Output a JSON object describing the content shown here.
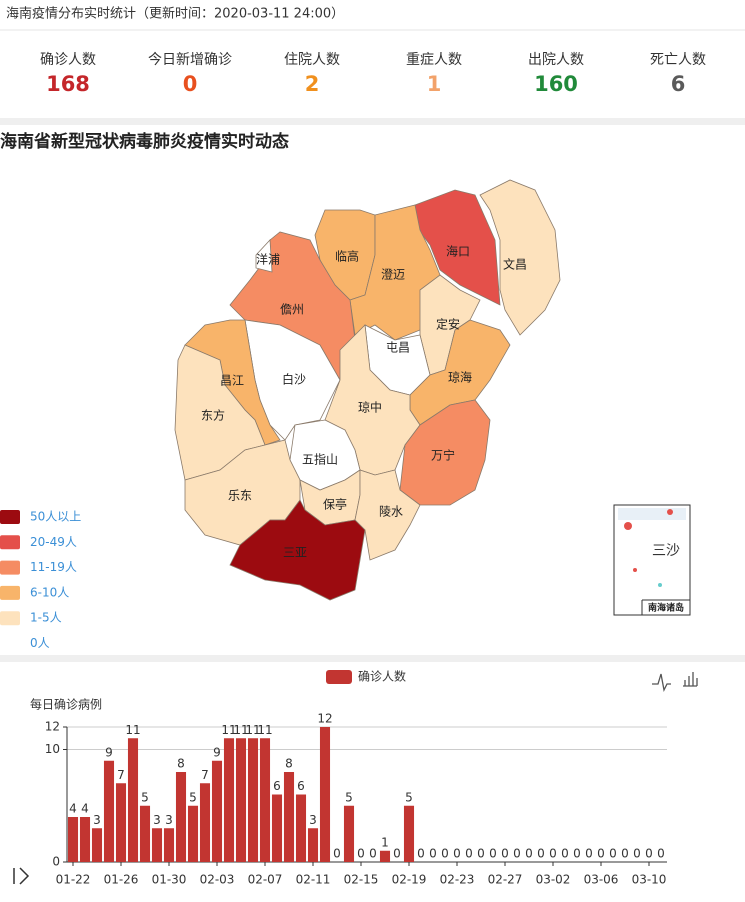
{
  "header": {
    "title": "海南疫情分布实时统计（更新时间：2020-03-11 24:00）"
  },
  "stats": [
    {
      "label": "确诊人数",
      "value": 168,
      "color": "#c4262a"
    },
    {
      "label": "今日新增确诊",
      "value": 0,
      "color": "#e8501f"
    },
    {
      "label": "住院人数",
      "value": 2,
      "color": "#f0901e"
    },
    {
      "label": "重症人数",
      "value": 1,
      "color": "#f2a26a"
    },
    {
      "label": "出院人数",
      "value": 160,
      "color": "#218a3a"
    },
    {
      "label": "死亡人数",
      "value": 6,
      "color": "#5a5a5a"
    }
  ],
  "map": {
    "title": "海南省新型冠状病毒肺炎疫情实时动态",
    "regions": [
      {
        "name": "海口",
        "color": "#e4504a"
      },
      {
        "name": "文昌",
        "color": "#fde2bd"
      },
      {
        "name": "临高",
        "color": "#f8b46a"
      },
      {
        "name": "澄迈",
        "color": "#f8b46a"
      },
      {
        "name": "儋州",
        "color": "#f58c63"
      },
      {
        "name": "洋浦",
        "color": "#ffffff"
      },
      {
        "name": "定安",
        "color": "#fde2bd"
      },
      {
        "name": "屯昌",
        "color": "#ffffff"
      },
      {
        "name": "琼海",
        "color": "#f8b46a"
      },
      {
        "name": "白沙",
        "color": "#ffffff"
      },
      {
        "name": "昌江",
        "color": "#f8b46a"
      },
      {
        "name": "东方",
        "color": "#fde2bd"
      },
      {
        "name": "琼中",
        "color": "#fde2bd"
      },
      {
        "name": "万宁",
        "color": "#f58c63"
      },
      {
        "name": "五指山",
        "color": "#ffffff"
      },
      {
        "name": "乐东",
        "color": "#fde2bd"
      },
      {
        "name": "保亭",
        "color": "#fde2bd"
      },
      {
        "name": "陵水",
        "color": "#fde2bd"
      },
      {
        "name": "三亚",
        "color": "#9c0b10"
      }
    ],
    "legend": [
      {
        "label": "50人以上",
        "color": "#9c0b10"
      },
      {
        "label": "20-49人",
        "color": "#e4504a"
      },
      {
        "label": "11-19人",
        "color": "#f58c63"
      },
      {
        "label": "6-10人",
        "color": "#f8b46a"
      },
      {
        "label": "1-5人",
        "color": "#fde2bd"
      },
      {
        "label": "0人",
        "color": "#ffffff"
      }
    ],
    "inset": {
      "label": "三沙",
      "caption": "南海诸岛"
    }
  },
  "chart_data": {
    "type": "bar",
    "y_label": "每日确诊病例",
    "categories": [
      "01-22",
      null,
      null,
      null,
      "01-26",
      null,
      null,
      null,
      "01-30",
      null,
      null,
      null,
      "02-03",
      null,
      null,
      null,
      "02-07",
      null,
      null,
      null,
      "02-11",
      null,
      null,
      null,
      "02-15",
      null,
      null,
      null,
      "02-19",
      null,
      null,
      null,
      "02-23",
      null,
      null,
      null,
      "02-27",
      null,
      null,
      null,
      "03-02",
      null,
      null,
      null,
      "03-06",
      null,
      null,
      null,
      "03-10",
      null
    ],
    "series": [
      {
        "name": "确诊人数",
        "color": "#c23531",
        "values": [
          4,
          4,
          3,
          9,
          7,
          11,
          5,
          3,
          3,
          8,
          5,
          7,
          9,
          11,
          11,
          11,
          11,
          6,
          8,
          6,
          3,
          12,
          0,
          5,
          0,
          0,
          1,
          0,
          5,
          0,
          0,
          0,
          0,
          0,
          0,
          0,
          0,
          0,
          0,
          0,
          0,
          0,
          0,
          0,
          0,
          0,
          0,
          0,
          0,
          0
        ]
      }
    ],
    "ylim": [
      0,
      12
    ],
    "yticks": [
      0,
      10,
      12
    ],
    "grid": true
  }
}
